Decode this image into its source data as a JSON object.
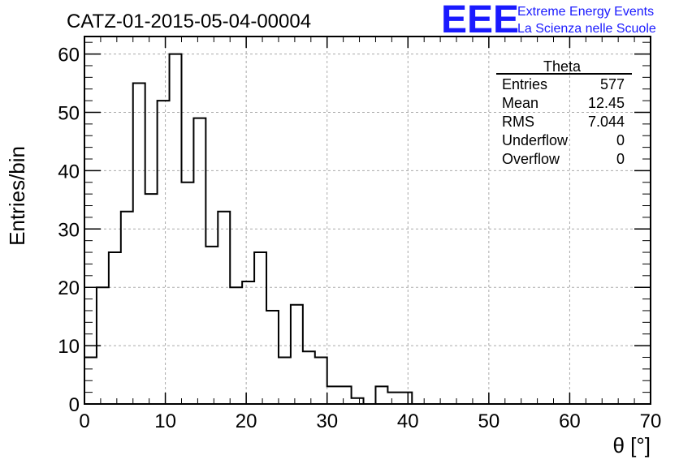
{
  "chart_data": {
    "type": "bar",
    "title": "CATZ-01-2015-05-04-00004",
    "xlabel": "θ [°]",
    "ylabel": "Entries/bin",
    "xlim": [
      0,
      70
    ],
    "ylim": [
      0,
      63
    ],
    "grid": true,
    "x_ticks": [
      "0",
      "10",
      "20",
      "30",
      "40",
      "50",
      "60",
      "70"
    ],
    "y_ticks": [
      "0",
      "10",
      "20",
      "30",
      "40",
      "50",
      "60"
    ],
    "bin_width": 1.5,
    "bin_start": 0,
    "values": [
      8,
      20,
      26,
      33,
      55,
      36,
      52,
      60,
      38,
      49,
      27,
      33,
      20,
      21,
      26,
      16,
      8,
      17,
      9,
      8,
      3,
      3,
      1,
      0,
      3,
      2,
      2
    ],
    "stats": {
      "name": "Theta",
      "rows": [
        {
          "label": "Entries",
          "value": "577"
        },
        {
          "label": "Mean",
          "value": "12.45"
        },
        {
          "label": "RMS",
          "value": "7.044"
        },
        {
          "label": "Underflow",
          "value": "0"
        },
        {
          "label": "Overflow",
          "value": "0"
        }
      ]
    }
  },
  "logo": {
    "mark": "EEE",
    "line1": "Extreme Energy Events",
    "line2": "La Scienza nelle Scuole",
    "color": "#1a1aff"
  }
}
